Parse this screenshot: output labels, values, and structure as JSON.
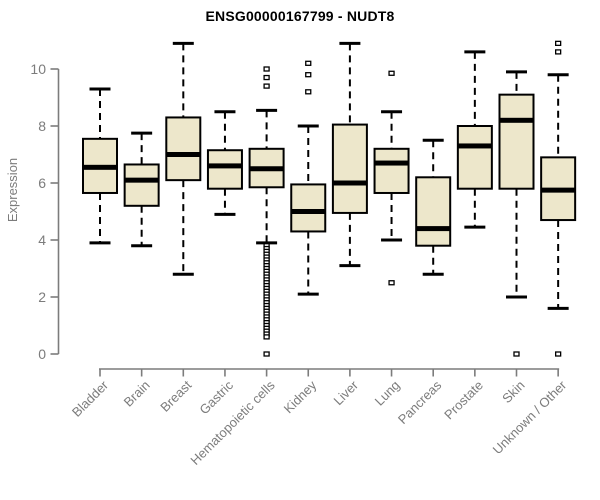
{
  "chart_data": {
    "type": "boxplot",
    "title": "ENSG00000167799 - NUDT8",
    "xlabel": "",
    "ylabel": "Expression",
    "ylim": [
      0,
      10
    ],
    "yticks": [
      0,
      2,
      4,
      6,
      8,
      10
    ],
    "grid": false,
    "legend": false,
    "x_tick_rotation_deg": 45,
    "categories": [
      "Bladder",
      "Brain",
      "Breast",
      "Gastric",
      "Hematopoietic cells",
      "Kidney",
      "Liver",
      "Lung",
      "Pancreas",
      "Prostate",
      "Skin",
      "Unknown / Other"
    ],
    "series": [
      {
        "name": "Bladder",
        "low": 3.9,
        "q1": 5.65,
        "median": 6.55,
        "q3": 7.55,
        "high": 9.3,
        "outliers": []
      },
      {
        "name": "Brain",
        "low": 3.8,
        "q1": 5.2,
        "median": 6.1,
        "q3": 6.65,
        "high": 7.75,
        "outliers": []
      },
      {
        "name": "Breast",
        "low": 2.8,
        "q1": 6.1,
        "median": 7.0,
        "q3": 8.3,
        "high": 10.9,
        "outliers": []
      },
      {
        "name": "Gastric",
        "low": 4.9,
        "q1": 5.8,
        "median": 6.6,
        "q3": 7.15,
        "high": 8.5,
        "outliers": []
      },
      {
        "name": "Hematopoietic cells",
        "low": 3.9,
        "q1": 5.85,
        "median": 6.5,
        "q3": 7.2,
        "high": 8.55,
        "outliers": [
          10.0,
          9.7,
          9.4,
          3.8,
          3.7,
          3.6,
          3.5,
          3.4,
          3.3,
          3.2,
          3.1,
          3.0,
          2.9,
          2.8,
          2.7,
          2.6,
          2.5,
          2.4,
          2.3,
          2.2,
          2.1,
          2.0,
          1.9,
          1.8,
          1.7,
          1.6,
          1.5,
          1.4,
          1.3,
          1.2,
          1.1,
          1.0,
          0.9,
          0.8,
          0.7,
          0.6,
          0.0
        ]
      },
      {
        "name": "Kidney",
        "low": 2.1,
        "q1": 4.3,
        "median": 5.0,
        "q3": 5.95,
        "high": 8.0,
        "outliers": [
          10.2,
          9.8,
          9.2
        ]
      },
      {
        "name": "Liver",
        "low": 3.1,
        "q1": 4.95,
        "median": 6.0,
        "q3": 8.05,
        "high": 10.9,
        "outliers": []
      },
      {
        "name": "Lung",
        "low": 4.0,
        "q1": 5.65,
        "median": 6.7,
        "q3": 7.2,
        "high": 8.5,
        "outliers": [
          9.85,
          2.5
        ]
      },
      {
        "name": "Pancreas",
        "low": 2.8,
        "q1": 3.8,
        "median": 4.4,
        "q3": 6.2,
        "high": 7.5,
        "outliers": []
      },
      {
        "name": "Prostate",
        "low": 4.45,
        "q1": 5.8,
        "median": 7.3,
        "q3": 8.0,
        "high": 10.6,
        "outliers": []
      },
      {
        "name": "Skin",
        "low": 2.0,
        "q1": 5.8,
        "median": 8.2,
        "q3": 9.1,
        "high": 9.9,
        "outliers": [
          0.0
        ]
      },
      {
        "name": "Unknown / Other",
        "low": 1.6,
        "q1": 4.7,
        "median": 5.75,
        "q3": 6.9,
        "high": 9.8,
        "outliers": [
          10.9,
          10.6,
          0.0
        ]
      }
    ]
  },
  "colors": {
    "box_fill": "#EDE7CB",
    "box_stroke": "#000000",
    "median": "#000000",
    "whisker": "#000000",
    "outlier_fill": "#FFFFFF",
    "outlier_stroke": "#000000",
    "axis": "#7c7c7c",
    "tick_label": "#7c7c7c",
    "title": "#000000",
    "background": "#FFFFFF"
  }
}
